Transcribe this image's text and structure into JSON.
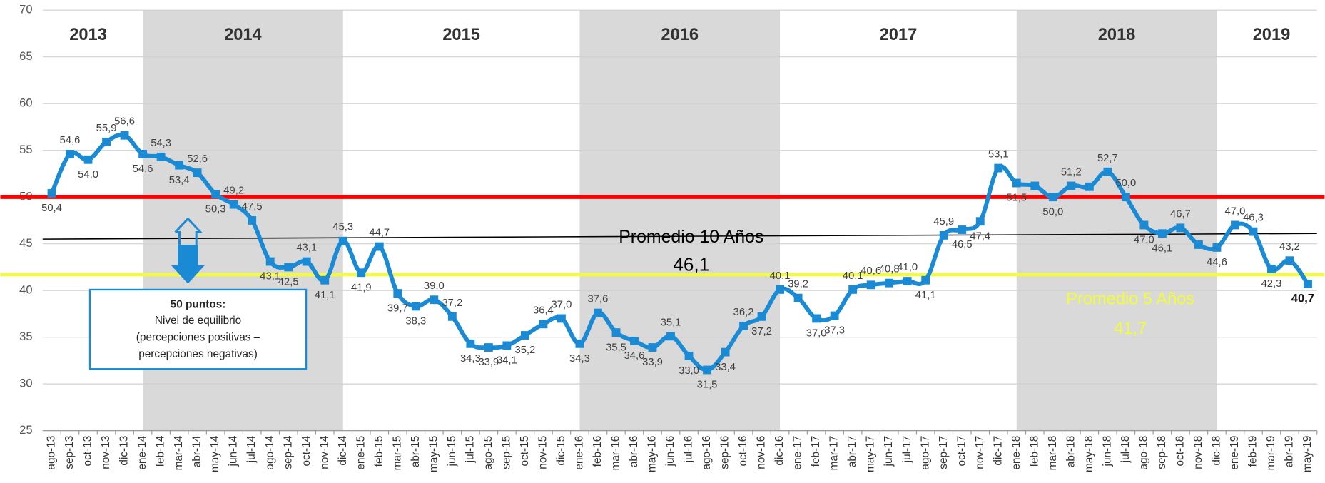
{
  "chart_data": {
    "type": "line",
    "categories": [
      "ago-13",
      "sep-13",
      "oct-13",
      "nov-13",
      "dic-13",
      "ene-14",
      "feb-14",
      "mar-14",
      "abr-14",
      "may-14",
      "jun-14",
      "jul-14",
      "ago-14",
      "sep-14",
      "oct-14",
      "nov-14",
      "dic-14",
      "ene-15",
      "feb-15",
      "mar-15",
      "abr-15",
      "may-15",
      "jun-15",
      "jul-15",
      "ago-15",
      "sep-15",
      "oct-15",
      "nov-15",
      "dic-15",
      "ene-16",
      "feb-16",
      "mar-16",
      "abr-16",
      "may-16",
      "jun-16",
      "jul-16",
      "ago-16",
      "sep-16",
      "oct-16",
      "nov-16",
      "dic-16",
      "ene-17",
      "feb-17",
      "mar-17",
      "abr-17",
      "may-17",
      "jun-17",
      "jul-17",
      "ago-17",
      "sep-17",
      "oct-17",
      "nov-17",
      "dic-17",
      "ene-18",
      "feb-18",
      "mar-18",
      "abr-18",
      "may-18",
      "jun-18",
      "jul-18",
      "ago-18",
      "sep-18",
      "oct-18",
      "nov-18",
      "dic-18",
      "ene-19",
      "feb-19",
      "mar-19",
      "abr-19",
      "may-19"
    ],
    "series": [
      {
        "color": "#1a8ad4",
        "values": [
          50.4,
          54.6,
          54.0,
          55.9,
          56.6,
          54.6,
          54.3,
          53.4,
          52.6,
          50.3,
          49.2,
          47.5,
          43.1,
          42.5,
          43.1,
          41.1,
          45.3,
          41.9,
          44.7,
          39.7,
          38.3,
          39.0,
          37.2,
          34.3,
          33.9,
          34.1,
          35.2,
          36.4,
          37.0,
          34.3,
          37.6,
          35.5,
          34.6,
          33.9,
          35.1,
          33.0,
          31.5,
          33.4,
          36.2,
          37.2,
          40.1,
          39.2,
          37.0,
          37.3,
          40.1,
          40.6,
          40.8,
          41.0,
          41.1,
          45.9,
          46.5,
          47.4,
          53.1,
          51.5,
          51.2,
          50.0,
          51.2,
          51.1,
          52.7,
          50.0,
          47.0,
          46.1,
          46.7,
          44.9,
          44.6,
          47.0,
          46.3,
          42.3,
          43.2,
          40.7
        ],
        "value_labels": [
          "50,4",
          "54,6",
          "54,0",
          "55,9",
          "56,6",
          "54,6",
          "54,3",
          "53,4",
          "52,6",
          "50,3",
          "49,2",
          "47,5",
          "43,1",
          "42,5",
          "43,1",
          "41,1",
          "45,3",
          "41,9",
          "44,7",
          "39,7",
          "38,3",
          "39,0",
          "37,2",
          "34,3",
          "33,9",
          "34,1",
          "35,2",
          "36,4",
          "37,0",
          "34,3",
          "37,6",
          "35,5",
          "34,6",
          "33,9",
          "35,1",
          "33,0",
          "31,5",
          "33,4",
          "36,2",
          "37,2",
          "40,1",
          "39,2",
          "37,0",
          "37,3",
          "40,1",
          "40,6",
          "40,8",
          "41,0",
          "41,1",
          "45,9",
          "46,5",
          "47,4",
          "53,1",
          "51,5",
          null,
          "50,0",
          "51,2",
          null,
          "52,7",
          "50,0",
          "47,0",
          "46,1",
          "46,7",
          null,
          "44,6",
          "47,0",
          "46,3",
          "42,3",
          "43,2",
          "40,7"
        ]
      }
    ],
    "ylim": [
      25,
      70
    ],
    "yticks": [
      25,
      30,
      35,
      40,
      45,
      50,
      55,
      60,
      65,
      70
    ],
    "grid": true,
    "year_bands": [
      {
        "label": "2013",
        "from": "ago-13",
        "to": "dic-13",
        "shaded": false
      },
      {
        "label": "2014",
        "from": "ene-14",
        "to": "dic-14",
        "shaded": true
      },
      {
        "label": "2015",
        "from": "ene-15",
        "to": "dic-15",
        "shaded": false
      },
      {
        "label": "2016",
        "from": "ene-16",
        "to": "dic-16",
        "shaded": true
      },
      {
        "label": "2017",
        "from": "ene-17",
        "to": "dic-17",
        "shaded": false
      },
      {
        "label": "2018",
        "from": "ene-18",
        "to": "dic-18",
        "shaded": true
      },
      {
        "label": "2019",
        "from": "ene-19",
        "to": "may-19",
        "shaded": false
      }
    ],
    "reference_lines": [
      {
        "value": 50,
        "color": "#ff0000"
      },
      {
        "name": "Promedio 10 Años",
        "start": 45.5,
        "end": 46.1,
        "value_label": "46,1",
        "color": "#000000"
      },
      {
        "name": "Promedio 5 Años",
        "value": 41.7,
        "value_label": "41,7",
        "color": "#f2fc3c"
      }
    ],
    "annotation": {
      "title": "50 puntos:",
      "lines": [
        "Nivel de equilibrio",
        "(percepciones positivas –",
        "percepciones negativas)"
      ]
    }
  }
}
